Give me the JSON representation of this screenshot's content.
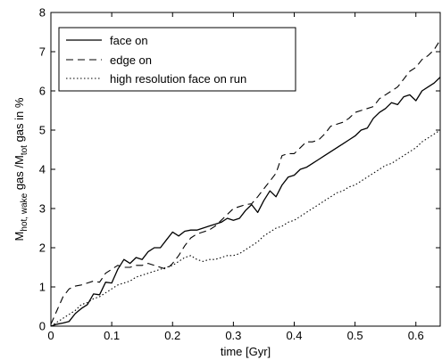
{
  "chart_data": {
    "type": "line",
    "title": "",
    "xlabel": "time [Gyr]",
    "ylabel_parts": {
      "m1": "M",
      "s1": "hot, wake",
      "m2": " gas /M",
      "s2": "tot",
      "m3": " gas in %"
    },
    "xlim": [
      0,
      0.64
    ],
    "ylim": [
      0,
      8
    ],
    "xticks": [
      "0",
      "0.1",
      "0.2",
      "0.3",
      "0.4",
      "0.5",
      "0.6"
    ],
    "xtick_values": [
      0,
      0.1,
      0.2,
      0.3,
      0.4,
      0.5,
      0.6
    ],
    "yticks": [
      "0",
      "1",
      "2",
      "3",
      "4",
      "5",
      "6",
      "7",
      "8"
    ],
    "ytick_values": [
      0,
      1,
      2,
      3,
      4,
      5,
      6,
      7,
      8
    ],
    "grid": false,
    "legend_position": "top-left",
    "series": [
      {
        "name": "face on",
        "style": "solid",
        "color": "#000000",
        "x": [
          0,
          0.01,
          0.02,
          0.03,
          0.04,
          0.05,
          0.06,
          0.07,
          0.08,
          0.09,
          0.1,
          0.11,
          0.12,
          0.13,
          0.14,
          0.15,
          0.16,
          0.17,
          0.18,
          0.19,
          0.2,
          0.21,
          0.22,
          0.23,
          0.24,
          0.25,
          0.26,
          0.27,
          0.28,
          0.29,
          0.3,
          0.31,
          0.32,
          0.33,
          0.34,
          0.35,
          0.36,
          0.37,
          0.38,
          0.39,
          0.4,
          0.41,
          0.42,
          0.43,
          0.44,
          0.45,
          0.46,
          0.47,
          0.48,
          0.49,
          0.5,
          0.51,
          0.52,
          0.53,
          0.54,
          0.55,
          0.56,
          0.57,
          0.58,
          0.59,
          0.6,
          0.61,
          0.62,
          0.63,
          0.64
        ],
        "y": [
          0.0,
          0.05,
          0.08,
          0.12,
          0.32,
          0.45,
          0.55,
          0.82,
          0.8,
          1.12,
          1.1,
          1.45,
          1.7,
          1.6,
          1.75,
          1.7,
          1.9,
          2.0,
          2.0,
          2.2,
          2.4,
          2.3,
          2.42,
          2.45,
          2.45,
          2.5,
          2.55,
          2.6,
          2.65,
          2.75,
          2.7,
          2.75,
          2.95,
          3.1,
          2.9,
          3.2,
          3.45,
          3.3,
          3.6,
          3.8,
          3.85,
          4.0,
          4.05,
          4.15,
          4.25,
          4.35,
          4.45,
          4.55,
          4.65,
          4.75,
          4.85,
          5.0,
          5.05,
          5.3,
          5.45,
          5.55,
          5.7,
          5.65,
          5.85,
          5.9,
          5.75,
          6.0,
          6.1,
          6.2,
          6.35
        ]
      },
      {
        "name": "edge on",
        "style": "dashed",
        "color": "#000000",
        "x": [
          0,
          0.01,
          0.02,
          0.03,
          0.04,
          0.05,
          0.06,
          0.07,
          0.08,
          0.09,
          0.1,
          0.11,
          0.12,
          0.13,
          0.14,
          0.15,
          0.16,
          0.17,
          0.18,
          0.19,
          0.2,
          0.21,
          0.22,
          0.23,
          0.24,
          0.25,
          0.26,
          0.27,
          0.28,
          0.29,
          0.3,
          0.31,
          0.32,
          0.33,
          0.34,
          0.35,
          0.36,
          0.37,
          0.38,
          0.39,
          0.4,
          0.41,
          0.42,
          0.43,
          0.44,
          0.45,
          0.46,
          0.47,
          0.48,
          0.49,
          0.5,
          0.51,
          0.52,
          0.53,
          0.54,
          0.55,
          0.56,
          0.57,
          0.58,
          0.59,
          0.6,
          0.61,
          0.62,
          0.63,
          0.64
        ],
        "y": [
          0.05,
          0.4,
          0.75,
          0.95,
          1.02,
          1.05,
          1.1,
          1.15,
          1.12,
          1.35,
          1.45,
          1.55,
          1.5,
          1.5,
          1.55,
          1.55,
          1.6,
          1.55,
          1.5,
          1.45,
          1.6,
          1.8,
          2.05,
          2.25,
          2.35,
          2.4,
          2.45,
          2.55,
          2.7,
          2.85,
          3.0,
          3.05,
          3.1,
          3.12,
          3.3,
          3.5,
          3.7,
          3.9,
          4.35,
          4.4,
          4.4,
          4.55,
          4.7,
          4.7,
          4.75,
          4.9,
          5.1,
          5.15,
          5.2,
          5.3,
          5.45,
          5.5,
          5.55,
          5.6,
          5.8,
          5.9,
          6.0,
          6.1,
          6.3,
          6.5,
          6.6,
          6.8,
          6.9,
          7.05,
          7.3
        ]
      },
      {
        "name": "high resolution face on run",
        "style": "dotted",
        "color": "#000000",
        "x": [
          0,
          0.01,
          0.02,
          0.03,
          0.04,
          0.05,
          0.06,
          0.07,
          0.08,
          0.09,
          0.1,
          0.11,
          0.12,
          0.13,
          0.14,
          0.15,
          0.16,
          0.17,
          0.18,
          0.19,
          0.2,
          0.21,
          0.22,
          0.23,
          0.24,
          0.25,
          0.26,
          0.27,
          0.28,
          0.29,
          0.3,
          0.31,
          0.32,
          0.33,
          0.34,
          0.35,
          0.36,
          0.37,
          0.38,
          0.39,
          0.4,
          0.41,
          0.42,
          0.43,
          0.44,
          0.45,
          0.46,
          0.47,
          0.48,
          0.49,
          0.5,
          0.51,
          0.52,
          0.53,
          0.54,
          0.55,
          0.56,
          0.57,
          0.58,
          0.59,
          0.6,
          0.61,
          0.62,
          0.63,
          0.64
        ],
        "y": [
          0.0,
          0.1,
          0.2,
          0.3,
          0.4,
          0.55,
          0.6,
          0.7,
          0.75,
          0.85,
          0.95,
          1.05,
          1.1,
          1.15,
          1.25,
          1.3,
          1.35,
          1.4,
          1.45,
          1.5,
          1.55,
          1.65,
          1.75,
          1.8,
          1.7,
          1.65,
          1.7,
          1.7,
          1.75,
          1.8,
          1.8,
          1.85,
          1.95,
          2.05,
          2.15,
          2.3,
          2.4,
          2.5,
          2.55,
          2.65,
          2.7,
          2.8,
          2.9,
          3.0,
          3.1,
          3.2,
          3.3,
          3.4,
          3.45,
          3.55,
          3.6,
          3.7,
          3.8,
          3.9,
          4.0,
          4.1,
          4.15,
          4.25,
          4.35,
          4.45,
          4.55,
          4.7,
          4.8,
          4.9,
          5.0
        ]
      }
    ]
  }
}
